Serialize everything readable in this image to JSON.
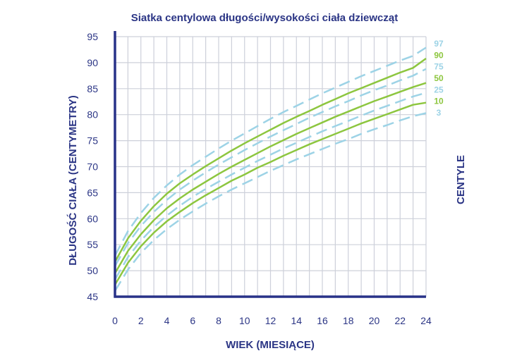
{
  "chart_data": {
    "type": "line",
    "title": "Siatka centylowa długości/wysokości ciała dziewcząt",
    "xlabel": "WIEK (MIESIĄCE)",
    "ylabel": "DŁUGOŚĆ CIAŁA (CENTYMETRY)",
    "y2label": "CENTYLE",
    "xlim": [
      0,
      24
    ],
    "ylim": [
      45,
      95
    ],
    "xticks": [
      "0",
      "2",
      "4",
      "6",
      "8",
      "10",
      "12",
      "14",
      "16",
      "18",
      "20",
      "22",
      "24"
    ],
    "yticks": [
      "45",
      "50",
      "55",
      "60",
      "65",
      "70",
      "75",
      "80",
      "85",
      "90",
      "95"
    ],
    "grid": true,
    "x": [
      0,
      1,
      2,
      3,
      4,
      5,
      6,
      7,
      8,
      9,
      10,
      11,
      12,
      13,
      14,
      15,
      16,
      17,
      18,
      19,
      20,
      21,
      22,
      23,
      24
    ],
    "series": [
      {
        "name": "97",
        "style": "dashed",
        "color": "#9dd3e6",
        "values": [
          52.9,
          57.6,
          61.1,
          64.0,
          66.4,
          68.5,
          70.3,
          71.9,
          73.5,
          75.0,
          76.4,
          77.8,
          79.2,
          80.5,
          81.7,
          82.9,
          84.1,
          85.2,
          86.3,
          87.4,
          88.4,
          89.4,
          90.4,
          91.3,
          92.9
        ]
      },
      {
        "name": "90",
        "style": "solid",
        "color": "#8dc63f",
        "values": [
          51.7,
          56.2,
          59.6,
          62.4,
          64.8,
          66.8,
          68.5,
          70.1,
          71.6,
          73.1,
          74.5,
          75.8,
          77.1,
          78.4,
          79.6,
          80.7,
          81.9,
          83.0,
          84.1,
          85.1,
          86.1,
          87.1,
          88.1,
          89.0,
          90.8
        ]
      },
      {
        "name": "75",
        "style": "dashed",
        "color": "#9dd3e6",
        "values": [
          50.9,
          55.3,
          58.6,
          61.3,
          63.6,
          65.6,
          67.3,
          68.9,
          70.4,
          71.8,
          73.2,
          74.5,
          75.8,
          77.0,
          78.2,
          79.4,
          80.5,
          81.6,
          82.6,
          83.7,
          84.7,
          85.6,
          86.6,
          87.5,
          88.8
        ]
      },
      {
        "name": "50",
        "style": "solid",
        "color": "#8dc63f",
        "values": [
          49.5,
          53.8,
          57.0,
          59.7,
          62.0,
          63.9,
          65.6,
          67.1,
          68.6,
          70.0,
          71.3,
          72.6,
          73.9,
          75.1,
          76.3,
          77.4,
          78.5,
          79.6,
          80.6,
          81.6,
          82.6,
          83.5,
          84.4,
          85.3,
          86.1
        ]
      },
      {
        "name": "25",
        "style": "dashed",
        "color": "#9dd3e6",
        "values": [
          48.3,
          52.6,
          55.8,
          58.4,
          60.6,
          62.5,
          64.2,
          65.7,
          67.1,
          68.5,
          69.8,
          71.1,
          72.3,
          73.5,
          74.6,
          75.7,
          76.8,
          77.8,
          78.8,
          79.8,
          80.8,
          81.7,
          82.6,
          83.5,
          84.2
        ]
      },
      {
        "name": "10",
        "style": "solid",
        "color": "#8dc63f",
        "values": [
          47.3,
          51.5,
          54.7,
          57.3,
          59.5,
          61.3,
          63.0,
          64.5,
          65.9,
          67.3,
          68.5,
          69.8,
          70.9,
          72.1,
          73.2,
          74.3,
          75.3,
          76.3,
          77.3,
          78.3,
          79.2,
          80.1,
          81.0,
          81.9,
          82.3
        ]
      },
      {
        "name": "3",
        "style": "dashed",
        "color": "#9dd3e6",
        "values": [
          46.1,
          50.2,
          53.4,
          55.9,
          58.0,
          59.8,
          61.4,
          62.9,
          64.3,
          65.6,
          66.8,
          68.0,
          69.2,
          70.3,
          71.4,
          72.4,
          73.4,
          74.4,
          75.3,
          76.3,
          77.2,
          78.0,
          78.9,
          79.7,
          80.3
        ]
      }
    ],
    "legend_labels": [
      {
        "label": "97",
        "color": "#9dd3e6"
      },
      {
        "label": "90",
        "color": "#8dc63f"
      },
      {
        "label": "75",
        "color": "#9dd3e6"
      },
      {
        "label": "50",
        "color": "#8dc63f"
      },
      {
        "label": "25",
        "color": "#9dd3e6"
      },
      {
        "label": "10",
        "color": "#8dc63f"
      },
      {
        "label": "3",
        "color": "#9dd3e6"
      }
    ],
    "legend_placement": "right",
    "colors": {
      "axis": "#283288",
      "text": "#2b3585",
      "grid": "#cdd0da"
    }
  }
}
